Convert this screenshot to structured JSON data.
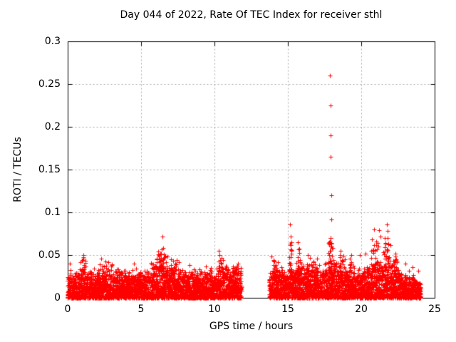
{
  "chart_data": {
    "type": "scatter",
    "title": "Day 044 of 2022, Rate Of TEC Index for receiver sthl",
    "xlabel": "GPS time / hours",
    "ylabel": "ROTI / TECUs",
    "xlim": [
      0,
      25
    ],
    "ylim": [
      0,
      0.3
    ],
    "xticks": [
      0,
      5,
      10,
      15,
      20,
      25
    ],
    "yticks": [
      0,
      0.05,
      0.1,
      0.15,
      0.2,
      0.25,
      0.3
    ],
    "grid": true,
    "legend": "none",
    "marker": {
      "shape": "plus",
      "color": "#ff0000",
      "size": 7
    },
    "background_color": "#ffffff",
    "border_color": "#000000",
    "grid_color": "#a8a8a8",
    "data_gaps": [
      [
        11.85,
        13.75
      ]
    ],
    "seed": 20220441,
    "band_segments": [
      {
        "range": [
          0.0,
          11.85
        ],
        "envelope": [
          [
            0,
            0.024
          ],
          [
            0.5,
            0.028
          ],
          [
            1,
            0.031
          ],
          [
            1.5,
            0.027
          ],
          [
            2,
            0.027
          ],
          [
            2.5,
            0.029
          ],
          [
            3,
            0.028
          ],
          [
            3.5,
            0.026
          ],
          [
            4,
            0.027
          ],
          [
            4.5,
            0.026
          ],
          [
            5,
            0.026
          ],
          [
            5.5,
            0.029
          ],
          [
            6,
            0.031
          ],
          [
            6.5,
            0.034
          ],
          [
            7,
            0.031
          ],
          [
            7.5,
            0.029
          ],
          [
            8,
            0.027
          ],
          [
            8.5,
            0.028
          ],
          [
            9,
            0.028
          ],
          [
            9.5,
            0.027
          ],
          [
            10,
            0.028
          ],
          [
            10.5,
            0.031
          ],
          [
            11,
            0.029
          ],
          [
            11.5,
            0.032
          ],
          [
            11.85,
            0.028
          ]
        ]
      },
      {
        "range": [
          13.75,
          24.05
        ],
        "envelope": [
          [
            13.75,
            0.026
          ],
          [
            14.2,
            0.031
          ],
          [
            14.7,
            0.027
          ],
          [
            15.2,
            0.032
          ],
          [
            15.7,
            0.031
          ],
          [
            16.2,
            0.029
          ],
          [
            16.8,
            0.033
          ],
          [
            17.3,
            0.029
          ],
          [
            17.9,
            0.037
          ],
          [
            18.3,
            0.036
          ],
          [
            18.8,
            0.029
          ],
          [
            19.3,
            0.031
          ],
          [
            19.8,
            0.029
          ],
          [
            20.3,
            0.031
          ],
          [
            20.8,
            0.036
          ],
          [
            21.3,
            0.038
          ],
          [
            21.8,
            0.036
          ],
          [
            22.2,
            0.033
          ],
          [
            22.6,
            0.027
          ],
          [
            23,
            0.024
          ],
          [
            23.5,
            0.022
          ],
          [
            24.05,
            0.02
          ]
        ]
      }
    ],
    "clusters": [
      {
        "t": 1.1,
        "spread": 0.15,
        "y_min": 0.03,
        "y_max": 0.048,
        "count": 12
      },
      {
        "t": 2.3,
        "spread": 0.3,
        "y_min": 0.028,
        "y_max": 0.044,
        "count": 10
      },
      {
        "t": 3.2,
        "spread": 0.3,
        "y_min": 0.028,
        "y_max": 0.042,
        "count": 8
      },
      {
        "t": 5.8,
        "spread": 0.3,
        "y_min": 0.028,
        "y_max": 0.042,
        "count": 10
      },
      {
        "t": 6.2,
        "spread": 0.15,
        "y_min": 0.03,
        "y_max": 0.054,
        "count": 12
      },
      {
        "t": 6.5,
        "spread": 0.25,
        "y_min": 0.032,
        "y_max": 0.058,
        "count": 22
      },
      {
        "t": 7.2,
        "spread": 0.25,
        "y_min": 0.03,
        "y_max": 0.046,
        "count": 10
      },
      {
        "t": 9.0,
        "spread": 0.5,
        "y_min": 0.026,
        "y_max": 0.038,
        "count": 8
      },
      {
        "t": 10.4,
        "spread": 0.15,
        "y_min": 0.03,
        "y_max": 0.052,
        "count": 12
      },
      {
        "t": 11.4,
        "spread": 0.2,
        "y_min": 0.028,
        "y_max": 0.04,
        "count": 8
      },
      {
        "t": 14.15,
        "spread": 0.2,
        "y_min": 0.028,
        "y_max": 0.044,
        "count": 10
      },
      {
        "t": 15.2,
        "spread": 0.1,
        "y_min": 0.032,
        "y_max": 0.068,
        "count": 15
      },
      {
        "t": 15.75,
        "spread": 0.1,
        "y_min": 0.032,
        "y_max": 0.06,
        "count": 12
      },
      {
        "t": 16.6,
        "spread": 0.3,
        "y_min": 0.03,
        "y_max": 0.046,
        "count": 12
      },
      {
        "t": 17.9,
        "spread": 0.15,
        "y_min": 0.032,
        "y_max": 0.07,
        "count": 28
      },
      {
        "t": 18.6,
        "spread": 0.3,
        "y_min": 0.03,
        "y_max": 0.05,
        "count": 14
      },
      {
        "t": 19.3,
        "spread": 0.1,
        "y_min": 0.03,
        "y_max": 0.048,
        "count": 8
      },
      {
        "t": 20.9,
        "spread": 0.25,
        "y_min": 0.032,
        "y_max": 0.068,
        "count": 24
      },
      {
        "t": 21.7,
        "spread": 0.2,
        "y_min": 0.032,
        "y_max": 0.072,
        "count": 24
      },
      {
        "t": 22.3,
        "spread": 0.15,
        "y_min": 0.03,
        "y_max": 0.05,
        "count": 10
      }
    ],
    "outliers": [
      [
        0.15,
        0.04
      ],
      [
        1.05,
        0.05
      ],
      [
        2.3,
        0.046
      ],
      [
        4.5,
        0.04
      ],
      [
        6.45,
        0.072
      ],
      [
        6.5,
        0.058
      ],
      [
        6.15,
        0.054
      ],
      [
        6.8,
        0.048
      ],
      [
        8.3,
        0.038
      ],
      [
        10.3,
        0.055
      ],
      [
        10.35,
        0.05
      ],
      [
        11.6,
        0.04
      ],
      [
        13.9,
        0.048
      ],
      [
        14.05,
        0.044
      ],
      [
        14.3,
        0.042
      ],
      [
        15.15,
        0.086
      ],
      [
        15.18,
        0.072
      ],
      [
        15.22,
        0.065
      ],
      [
        15.25,
        0.056
      ],
      [
        15.7,
        0.065
      ],
      [
        15.72,
        0.057
      ],
      [
        16.35,
        0.05
      ],
      [
        16.5,
        0.047
      ],
      [
        17.0,
        0.046
      ],
      [
        17.88,
        0.26
      ],
      [
        17.9,
        0.225
      ],
      [
        17.92,
        0.19
      ],
      [
        17.92,
        0.165
      ],
      [
        17.95,
        0.12
      ],
      [
        17.97,
        0.092
      ],
      [
        17.9,
        0.07
      ],
      [
        17.95,
        0.064
      ],
      [
        18.0,
        0.058
      ],
      [
        18.6,
        0.055
      ],
      [
        19.3,
        0.05
      ],
      [
        19.9,
        0.05
      ],
      [
        20.3,
        0.052
      ],
      [
        20.75,
        0.068
      ],
      [
        20.85,
        0.08
      ],
      [
        21.0,
        0.062
      ],
      [
        21.2,
        0.079
      ],
      [
        21.3,
        0.072
      ],
      [
        21.6,
        0.07
      ],
      [
        21.75,
        0.086
      ],
      [
        21.78,
        0.078
      ],
      [
        22.0,
        0.062
      ],
      [
        22.35,
        0.052
      ],
      [
        23.0,
        0.04
      ],
      [
        23.5,
        0.036
      ],
      [
        23.9,
        0.032
      ]
    ]
  }
}
